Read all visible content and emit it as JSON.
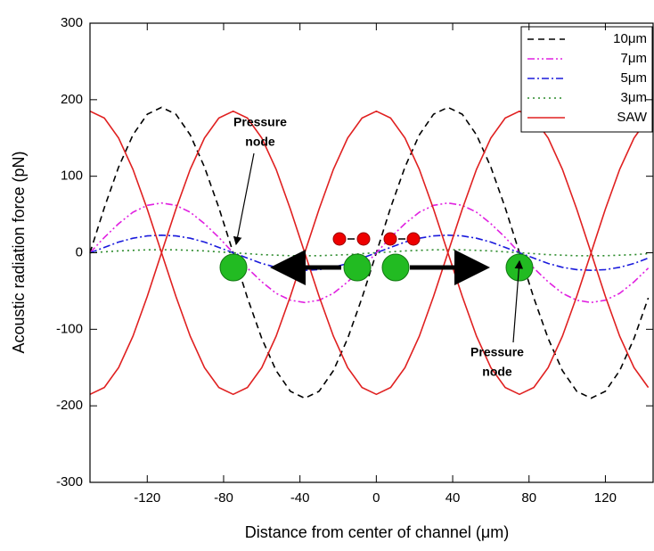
{
  "chart_data": {
    "type": "line",
    "x_label": "Distance from center of channel (μm)",
    "y_label": "Acoustic radiation force (pN)",
    "xlim": [
      -150,
      145
    ],
    "ylim": [
      -300,
      300
    ],
    "xticks": [
      -120,
      -80,
      -40,
      0,
      40,
      80,
      120
    ],
    "yticks": [
      -300,
      -200,
      -100,
      0,
      100,
      200,
      300
    ],
    "x": [
      -150,
      -142.5,
      -135,
      -127.5,
      -120,
      -112.5,
      -105,
      -97.5,
      -90,
      -82.5,
      -75,
      -67.5,
      -60,
      -52.5,
      -45,
      -37.5,
      -30,
      -22.5,
      -15,
      -7.5,
      0,
      7.5,
      15,
      22.5,
      30,
      37.5,
      45,
      52.5,
      60,
      67.5,
      75,
      82.5,
      90,
      97.5,
      105,
      112.5,
      120,
      127.5,
      135,
      142.5
    ],
    "series": [
      {
        "name": "10μm",
        "color": "#000000",
        "dash": "7,5",
        "values": [
          0,
          59,
          112,
          154,
          181,
          190,
          181,
          154,
          112,
          59,
          0,
          -59,
          -112,
          -154,
          -181,
          -190,
          -181,
          -154,
          -112,
          -59,
          0,
          59,
          112,
          154,
          181,
          190,
          181,
          154,
          112,
          59,
          0,
          -59,
          -112,
          -154,
          -181,
          -190,
          -181,
          -154,
          -112,
          -59
        ]
      },
      {
        "name": "7μm",
        "color": "#e020e0",
        "dash": "8,3,2,3,2,3",
        "values": [
          0,
          20,
          38,
          53,
          62,
          65,
          62,
          53,
          38,
          20,
          0,
          -20,
          -38,
          -53,
          -62,
          -65,
          -62,
          -53,
          -38,
          -20,
          0,
          20,
          38,
          53,
          62,
          65,
          62,
          53,
          38,
          20,
          0,
          -20,
          -38,
          -53,
          -62,
          -65,
          -62,
          -53,
          -38,
          -20
        ]
      },
      {
        "name": "5μm",
        "color": "#1a1adc",
        "dash": "8,3,2,3",
        "values": [
          0,
          7,
          14,
          19,
          22,
          23,
          22,
          19,
          14,
          7,
          0,
          -7,
          -14,
          -19,
          -22,
          -23,
          -22,
          -19,
          -14,
          -7,
          0,
          7,
          14,
          19,
          22,
          23,
          22,
          19,
          14,
          7,
          0,
          -7,
          -14,
          -19,
          -22,
          -23,
          -22,
          -19,
          -14,
          -7
        ]
      },
      {
        "name": "3μm",
        "color": "#2a8a2a",
        "dash": "2,4",
        "values": [
          0,
          1.2,
          2.4,
          3.2,
          3.8,
          4,
          3.8,
          3.2,
          2.4,
          1.2,
          0,
          -1.2,
          -2.4,
          -3.2,
          -3.8,
          -4,
          -3.8,
          -3.2,
          -2.4,
          -1.2,
          0,
          1.2,
          2.4,
          3.2,
          3.8,
          4,
          3.8,
          3.2,
          2.4,
          1.2,
          0,
          -1.2,
          -2.4,
          -3.2,
          -3.8,
          -4,
          -3.8,
          -3.2,
          -2.4,
          -1.2
        ]
      },
      {
        "name": "SAW",
        "color": "#e02020",
        "values": [
          185,
          176,
          150,
          109,
          57,
          0,
          -57,
          -109,
          -150,
          -176,
          -185,
          -176,
          -150,
          -109,
          -57,
          0,
          57,
          109,
          150,
          176,
          185,
          176,
          150,
          109,
          57,
          0,
          -57,
          -109,
          -150,
          -176,
          -185,
          -176,
          -150,
          -109,
          -57,
          0,
          57,
          109,
          150,
          176
        ]
      },
      {
        "color": "#e02020",
        "values": [
          -185,
          -176,
          -150,
          -109,
          -57,
          0,
          57,
          109,
          150,
          176,
          185,
          176,
          150,
          109,
          57,
          0,
          -57,
          -109,
          -150,
          -176,
          -185,
          -176,
          -150,
          -109,
          -57,
          0,
          57,
          109,
          150,
          176,
          185,
          176,
          150,
          109,
          57,
          0,
          -57,
          -109,
          -150,
          -176
        ]
      }
    ],
    "annotations": [
      {
        "lines": [
          "Pressure",
          "node"
        ]
      },
      {
        "lines": [
          "Pressure",
          "node"
        ]
      }
    ]
  }
}
